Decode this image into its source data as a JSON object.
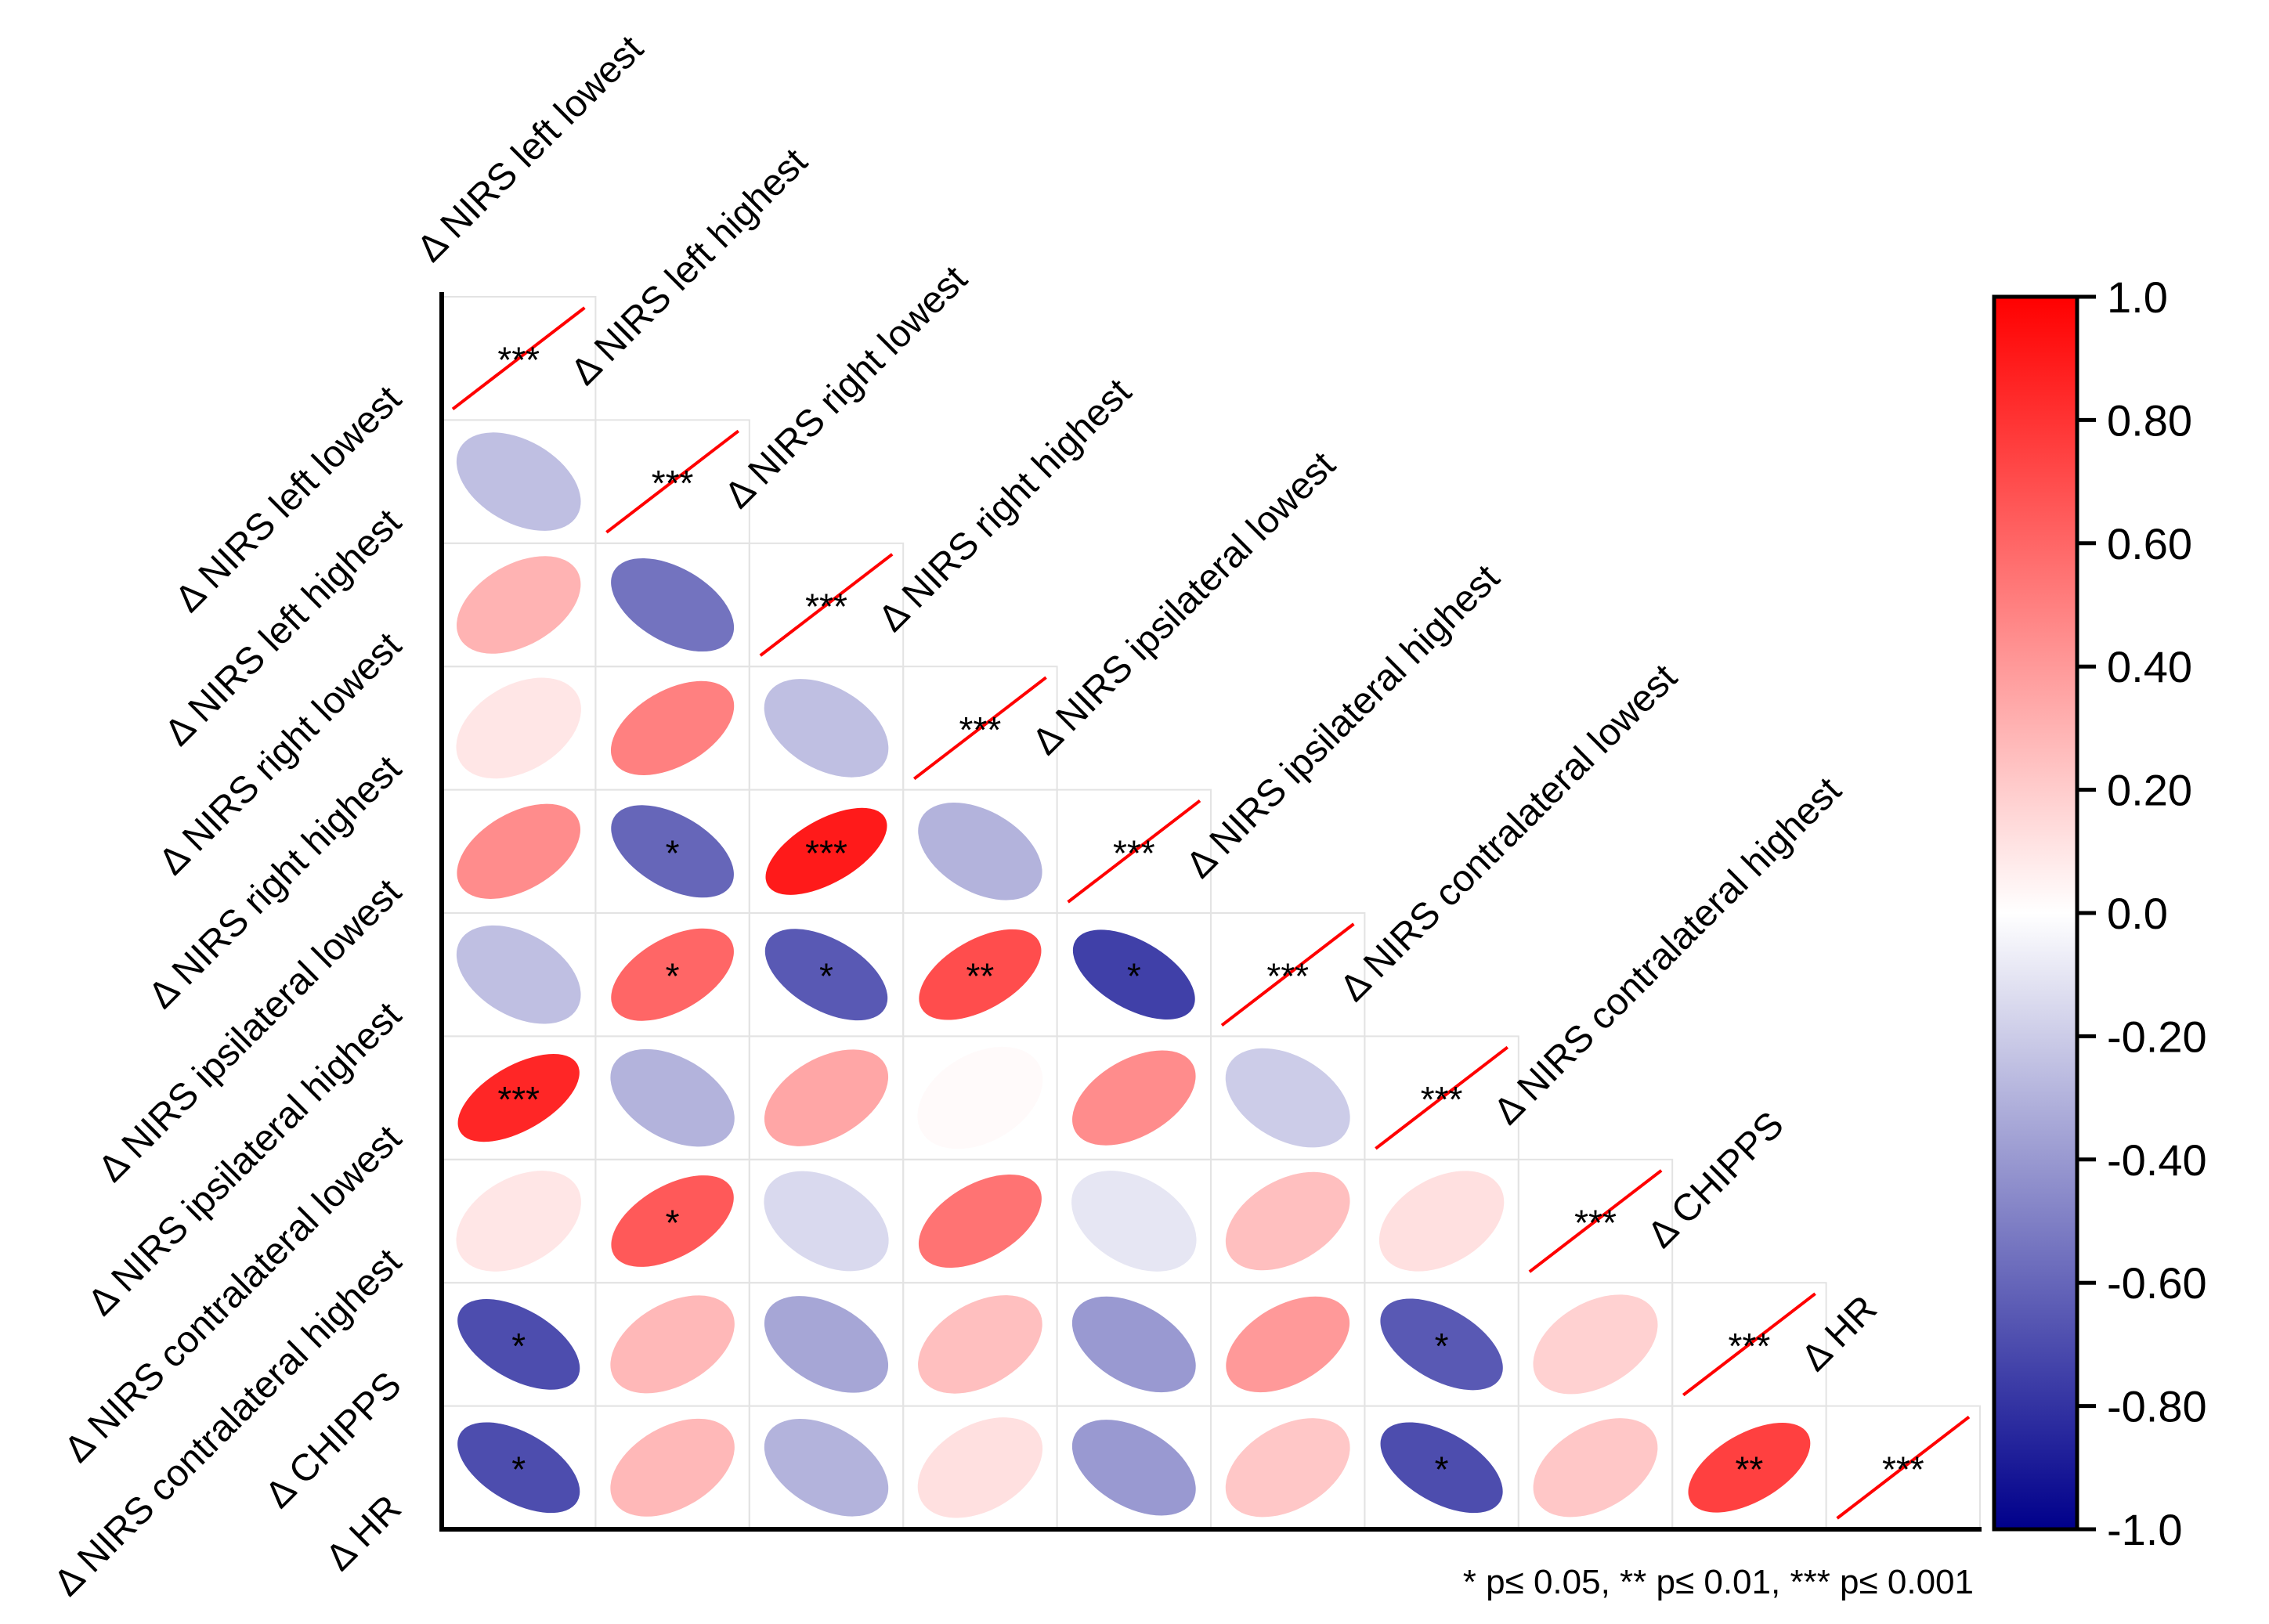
{
  "chart_data": {
    "type": "heatmap",
    "subtype": "correlation-ellipse-lower-triangle",
    "variables": [
      "Δ NIRS left lowest",
      "Δ NIRS left highest",
      "Δ NIRS right lowest",
      "Δ NIRS right highest",
      "Δ NIRS ipsilateral lowest",
      "Δ NIRS ipsilateral highest",
      "Δ NIRS contralateral lowest",
      "Δ NIRS contralateral highest",
      "Δ CHIPPS",
      "Δ HR"
    ],
    "correlations": [
      [
        1.0
      ],
      [
        -0.25,
        1.0
      ],
      [
        0.3,
        -0.55,
        1.0
      ],
      [
        0.1,
        0.5,
        -0.25,
        1.0
      ],
      [
        0.45,
        -0.6,
        0.9,
        -0.3,
        1.0
      ],
      [
        -0.25,
        0.6,
        -0.65,
        0.7,
        -0.75,
        1.0
      ],
      [
        0.85,
        -0.3,
        0.35,
        0.02,
        0.45,
        -0.2,
        1.0
      ],
      [
        0.1,
        0.65,
        -0.15,
        0.55,
        -0.1,
        0.25,
        0.12,
        1.0
      ],
      [
        -0.7,
        0.28,
        -0.35,
        0.25,
        -0.4,
        0.4,
        -0.65,
        0.18,
        1.0
      ],
      [
        -0.7,
        0.28,
        -0.3,
        0.12,
        -0.4,
        0.22,
        -0.7,
        0.22,
        0.75,
        1.0
      ]
    ],
    "significance": [
      [
        "***"
      ],
      [
        "",
        "***"
      ],
      [
        "",
        "",
        "***"
      ],
      [
        "",
        "",
        "",
        "***"
      ],
      [
        "",
        "*",
        "***",
        "",
        "***"
      ],
      [
        "",
        "*",
        "*",
        "**",
        "*",
        "***"
      ],
      [
        "***",
        "",
        "",
        "",
        "",
        "",
        "***"
      ],
      [
        "",
        "*",
        "",
        "",
        "",
        "",
        "",
        "***"
      ],
      [
        "*",
        "",
        "",
        "",
        "",
        "",
        "*",
        "",
        "***"
      ],
      [
        "*",
        "",
        "",
        "",
        "",
        "",
        "*",
        "",
        "**",
        "***"
      ]
    ],
    "colorbar": {
      "range": [
        -1.0,
        1.0
      ],
      "ticks": [
        "1.0",
        "0.80",
        "0.60",
        "0.40",
        "0.20",
        "0.0",
        "-0.20",
        "-0.40",
        "-0.60",
        "-0.80",
        "-1.0"
      ],
      "colors": {
        "negative": "#00008b",
        "mid": "#ffffff",
        "positive": "#ff0000"
      }
    },
    "footnote": "* p≤ 0.05, ** p≤ 0.01, *** p≤ 0.001",
    "diagonal_line_color": "#ff0000"
  }
}
